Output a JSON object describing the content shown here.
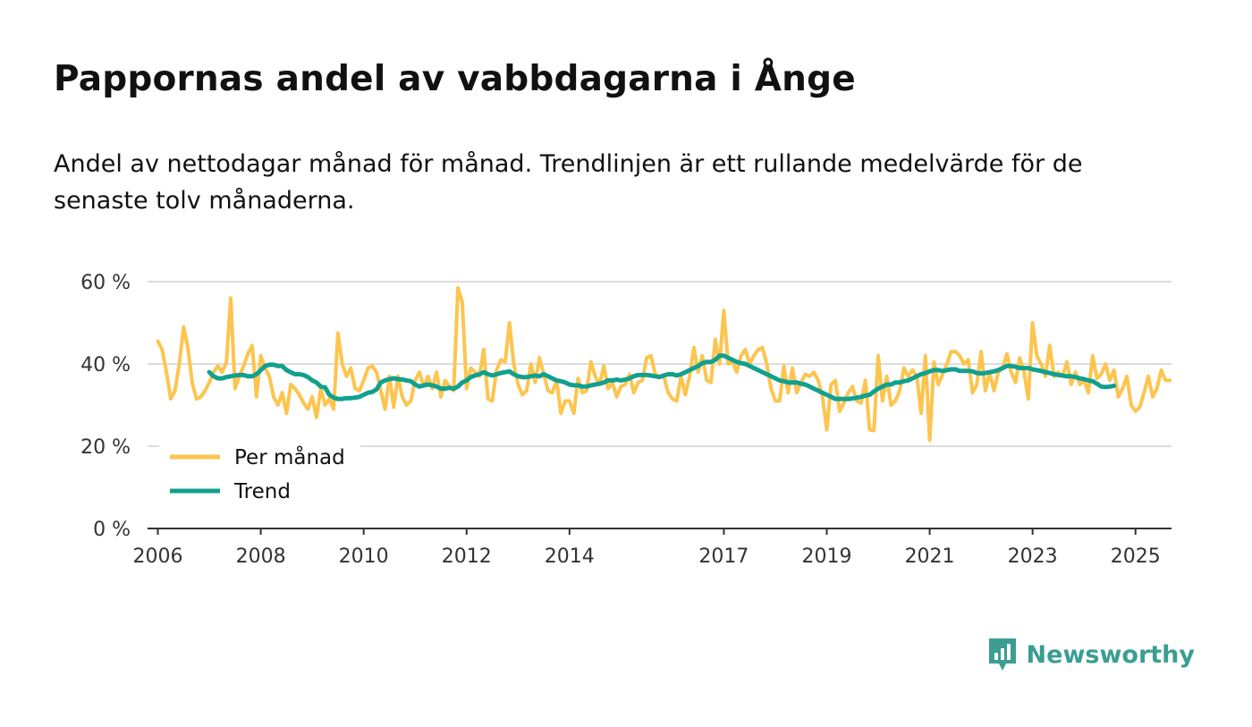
{
  "header": {
    "title": "Pappornas andel av vabbdagarna i Ånge",
    "subtitle": "Andel av nettodagar månad för månad. Trendlinjen är ett rullande medelvärde för de senaste tolv månaderna."
  },
  "brand": {
    "name": "Newsworthy",
    "color": "#3a9e92",
    "icon": "bar-chart-speech-bubble-icon"
  },
  "colors": {
    "monthly": "#fdc54f",
    "trend": "#12a08e",
    "grid": "#dddddd",
    "axis": "#333333"
  },
  "chart_data": {
    "type": "line",
    "title": "Pappornas andel av vabbdagarna i Ånge",
    "xlabel": "",
    "ylabel": "",
    "xlim": [
      2005.8,
      2025.7
    ],
    "ylim": [
      0,
      60
    ],
    "y_ticks": [
      0,
      20,
      40,
      60
    ],
    "y_tick_labels": [
      "0 %",
      "20 %",
      "40 %",
      "60 %"
    ],
    "x_ticks": [
      2006,
      2008,
      2010,
      2012,
      2014,
      2017,
      2019,
      2021,
      2023,
      2025
    ],
    "x_tick_labels": [
      "2006",
      "2008",
      "2010",
      "2012",
      "2014",
      "2017",
      "2019",
      "2021",
      "2023",
      "2025"
    ],
    "grid": true,
    "legend": "bottom-left",
    "x_start": 2006.0,
    "x_step": 0.0833333,
    "series": [
      {
        "name": "Per månad",
        "values": [
          45.5,
          43.5,
          38,
          31.5,
          33.5,
          40,
          49,
          44,
          35.5,
          31.5,
          32,
          33.5,
          35.5,
          38,
          39.5,
          38,
          40.5,
          56,
          34,
          37,
          39.5,
          42.5,
          44.5,
          32,
          42,
          39,
          37,
          32,
          30,
          33,
          28,
          35,
          34,
          32.5,
          30.5,
          29,
          32,
          27,
          34,
          30,
          31.5,
          29,
          47.5,
          40,
          37,
          39,
          34,
          33.5,
          36,
          39,
          39.5,
          38,
          33.5,
          29,
          37,
          29.5,
          37,
          32,
          30,
          31,
          36,
          38,
          34.5,
          37,
          34,
          38,
          32,
          36,
          34.5,
          33.5,
          58.5,
          55,
          34,
          39,
          38,
          37,
          43.5,
          31.5,
          31,
          38.5,
          41,
          40.5,
          50,
          40,
          35,
          32.5,
          33.5,
          40,
          35.5,
          41.5,
          37.5,
          33.5,
          33,
          36,
          28,
          31,
          31,
          28,
          36.5,
          33,
          33.5,
          40.5,
          37,
          35,
          39.5,
          34,
          35.5,
          32,
          34.5,
          35,
          37.5,
          33,
          35.5,
          36,
          41.5,
          42,
          37.5,
          37,
          37,
          33,
          31.5,
          31,
          37,
          32.5,
          37,
          44,
          38,
          42,
          36,
          35.5,
          46,
          40,
          53,
          40,
          40.5,
          38,
          42,
          43.5,
          40,
          42,
          43.5,
          44,
          40,
          34,
          31,
          31,
          39.5,
          33,
          39,
          33,
          35.5,
          37.5,
          37,
          38,
          36,
          32,
          24,
          35,
          36,
          28.5,
          30.5,
          33,
          34.5,
          31,
          30.5,
          36,
          24,
          23.8,
          42,
          31,
          37,
          30,
          31,
          33.5,
          39,
          37,
          38.5,
          37,
          28,
          42,
          21.5,
          40.5,
          35,
          37.5,
          40,
          43,
          43,
          42,
          40,
          41,
          33,
          35,
          43,
          33.5,
          38,
          33.5,
          38,
          39,
          42.5,
          38,
          35.5,
          41.5,
          38,
          31.5,
          50,
          42,
          40,
          37,
          44.5,
          37,
          38,
          37,
          40.5,
          35,
          38,
          35,
          36,
          33,
          42,
          36.5,
          37.5,
          40,
          36,
          38.5,
          32,
          34,
          37,
          30,
          28.5,
          29.5,
          33,
          37,
          32,
          34,
          38.5,
          36,
          36
        ]
      },
      {
        "name": "Trend",
        "values": [
          38,
          37,
          36.5,
          36.5,
          36.8,
          37,
          37.2,
          37.3,
          37.3,
          37,
          37,
          37.5,
          38.5,
          39.5,
          39.8,
          39.8,
          39.5,
          39.5,
          38.5,
          38,
          37.5,
          37.5,
          37.3,
          36.8,
          36,
          35.5,
          34.5,
          34.3,
          32.5,
          31.8,
          31.5,
          31.5,
          31.7,
          31.7,
          31.8,
          32,
          32.5,
          33,
          33.2,
          33.8,
          35.5,
          36,
          36.3,
          36.5,
          36.3,
          36.2,
          36,
          35.8,
          35,
          34.5,
          34.8,
          35,
          34.8,
          34.5,
          34,
          34,
          34.2,
          34,
          34.5,
          35.5,
          36,
          36.8,
          37.2,
          37.5,
          38,
          37.5,
          37.2,
          37.5,
          37.8,
          38,
          38.2,
          37.5,
          37,
          36.8,
          36.8,
          37,
          37.2,
          37,
          37.5,
          37,
          36.5,
          36,
          35.8,
          35.5,
          35,
          34.8,
          34.8,
          34.5,
          34.5,
          34.8,
          35,
          35.2,
          35.5,
          36,
          36,
          36.2,
          36,
          36.2,
          36.5,
          37,
          37.3,
          37.3,
          37.3,
          37.2,
          37,
          36.8,
          37.2,
          37.5,
          37.5,
          37.2,
          37.5,
          38,
          38.5,
          39,
          39.5,
          40.2,
          40.5,
          40.5,
          41,
          42,
          42,
          41.5,
          41,
          40.5,
          40.2,
          40,
          39.5,
          39,
          38.5,
          38,
          37.5,
          37,
          36.5,
          36,
          35.8,
          35.5,
          35.5,
          35.5,
          35.2,
          35,
          34.5,
          34,
          33.5,
          33,
          32.5,
          32,
          31.5,
          31.5,
          31.5,
          31.5,
          31.6,
          31.8,
          32,
          32.3,
          32.5,
          33.3,
          34,
          34.5,
          35,
          35,
          35.5,
          35.5,
          35.8,
          36,
          36.5,
          37,
          37.5,
          37.8,
          38.2,
          38.5,
          38.5,
          38.3,
          38.5,
          38.7,
          38.7,
          38.3,
          38.3,
          38.3,
          38.2,
          37.8,
          37.7,
          37.8,
          38,
          38.2,
          38.5,
          39,
          39.5,
          39.5,
          39.3,
          39,
          39,
          39,
          38.7,
          38.5,
          38.3,
          38,
          37.8,
          37.5,
          37.3,
          37.2,
          37,
          37,
          36.8,
          36.5,
          36.3,
          36,
          35.8,
          35.2,
          34.5,
          34.4,
          34.5,
          34.7
        ]
      }
    ]
  }
}
